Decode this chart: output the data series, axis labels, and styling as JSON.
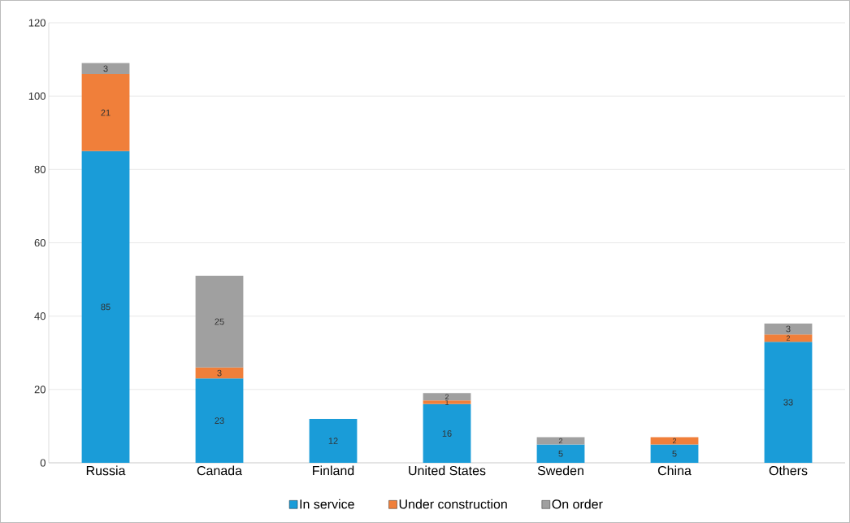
{
  "chart_data": {
    "type": "bar",
    "stacked": true,
    "categories": [
      "Russia",
      "Canada",
      "Finland",
      "United States",
      "Sweden",
      "China",
      "Others"
    ],
    "series": [
      {
        "name": "In service",
        "color": "#1a9cd8",
        "values": [
          85,
          23,
          12,
          16,
          5,
          5,
          33
        ],
        "value_labels": [
          "85",
          "23",
          "12",
          "16",
          "5",
          "5",
          "33"
        ]
      },
      {
        "name": "Under construction",
        "color": "#f07f3a",
        "values": [
          21,
          3,
          null,
          1,
          null,
          2,
          2
        ],
        "value_labels": [
          "21",
          "3",
          null,
          "1",
          null,
          "2",
          "2"
        ]
      },
      {
        "name": "On order",
        "color": "#a0a0a0",
        "values": [
          3,
          25,
          null,
          2,
          2,
          null,
          3
        ],
        "value_labels": [
          "3",
          "25",
          null,
          "2",
          "2",
          null,
          "3"
        ]
      }
    ],
    "ylim": [
      0,
      120
    ],
    "yticks": [
      0,
      20,
      40,
      60,
      80,
      100,
      120
    ],
    "grid": "y",
    "legend": "bottom"
  }
}
